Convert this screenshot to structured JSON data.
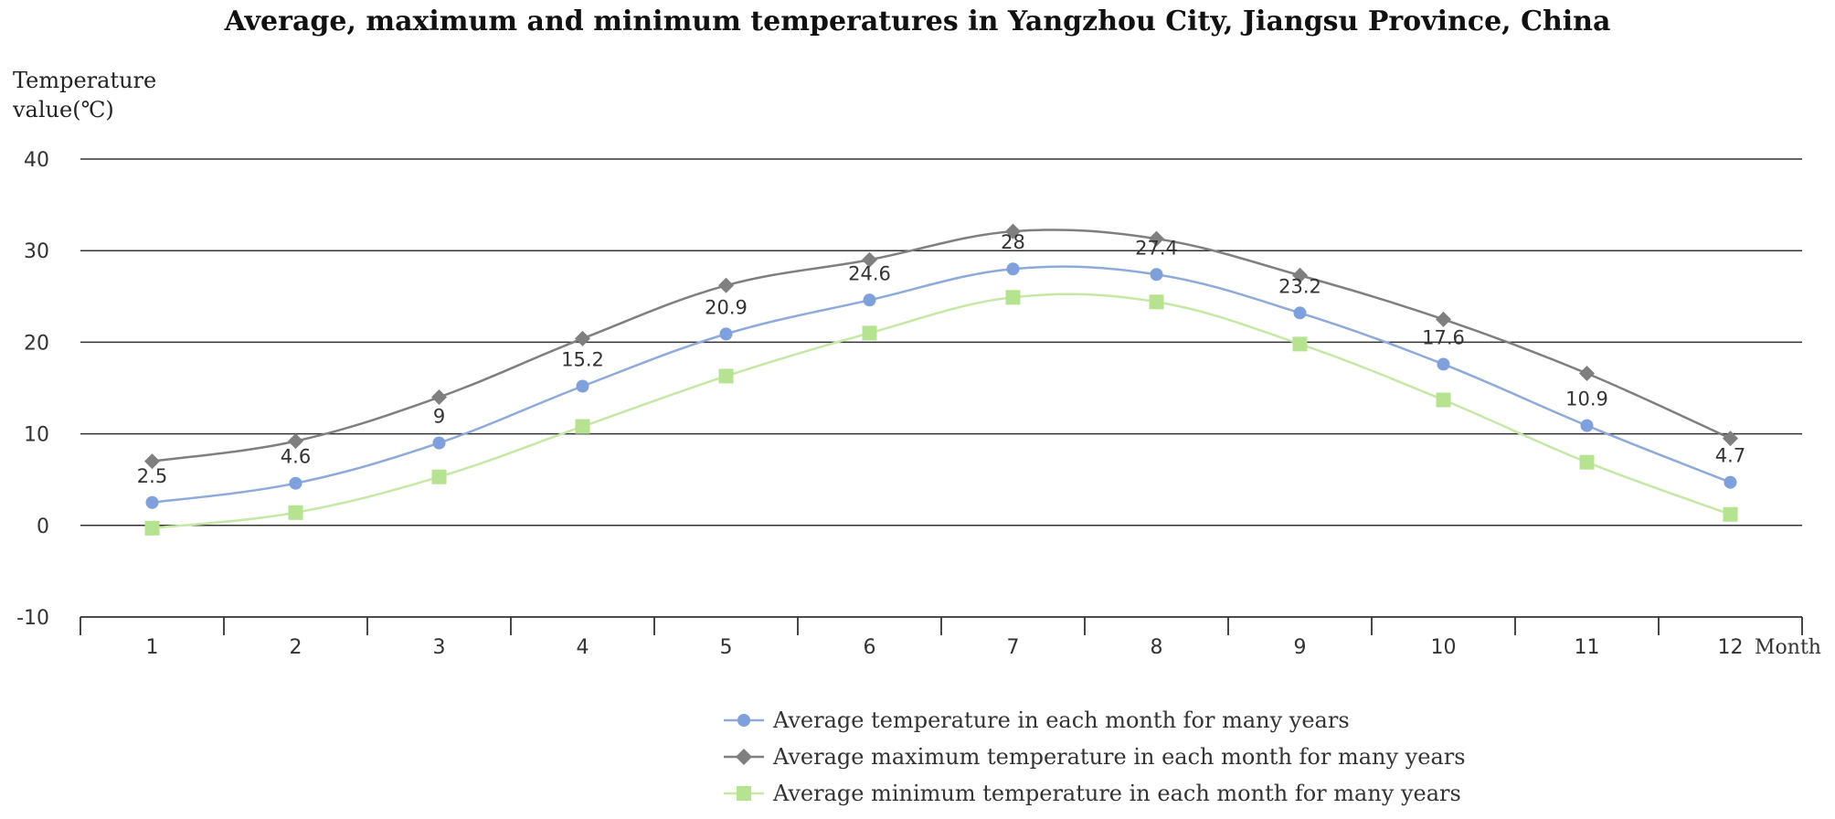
{
  "chart_data": {
    "type": "line",
    "title": "Average, maximum and minimum temperatures in Yangzhou City, Jiangsu Province, China",
    "ylabel_line1": "Temperature",
    "ylabel_line2": "value(℃)",
    "xlabel": "Month",
    "categories": [
      "1",
      "2",
      "3",
      "4",
      "5",
      "6",
      "7",
      "8",
      "9",
      "10",
      "11",
      "12"
    ],
    "ylim": [
      -10,
      40
    ],
    "yticks": [
      -10,
      0,
      10,
      20,
      30,
      40
    ],
    "grid": true,
    "legend_position": "bottom",
    "series": [
      {
        "name": "Average temperature in each month for many years",
        "marker": "circle",
        "color": "#8eaadb",
        "marker_color": "#7ea0dc",
        "values": [
          2.5,
          4.6,
          9,
          15.2,
          20.9,
          24.6,
          28,
          27.4,
          23.2,
          17.6,
          10.9,
          4.7
        ],
        "labels": [
          "2.5",
          "4.6",
          "9",
          "15.2",
          "20.9",
          "24.6",
          "28",
          "27.4",
          "23.2",
          "17.6",
          "10.9",
          "4.7"
        ]
      },
      {
        "name": "Average maximum temperature in each month for many years",
        "marker": "diamond",
        "color": "#7f7f7f",
        "marker_color": "#7f7f7f",
        "values": [
          7,
          9.2,
          14,
          20.4,
          26.2,
          29,
          32.1,
          31.3,
          27.3,
          22.5,
          16.6,
          9.5
        ]
      },
      {
        "name": "Average minimum temperature in each month for many years",
        "marker": "square",
        "color": "#c5e8a4",
        "marker_color": "#b5e38f",
        "values": [
          -0.3,
          1.4,
          5.3,
          10.8,
          16.3,
          21,
          24.9,
          24.4,
          19.8,
          13.7,
          6.9,
          1.2
        ]
      }
    ]
  }
}
